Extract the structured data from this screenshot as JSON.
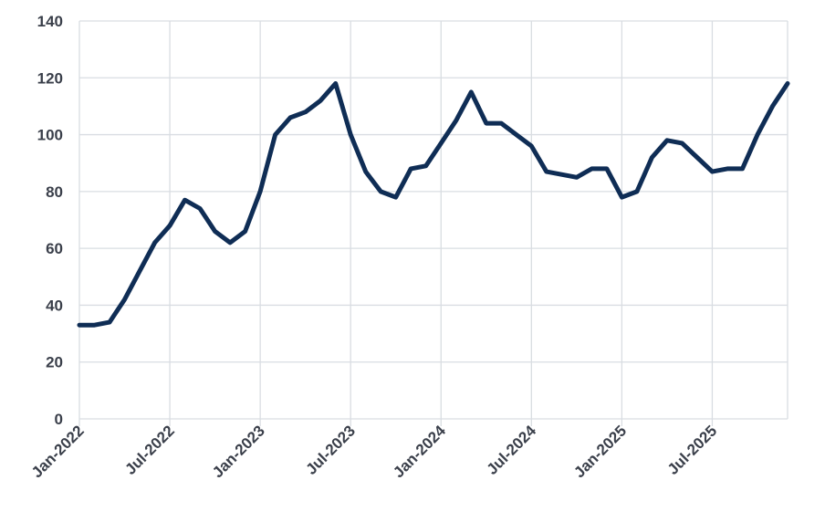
{
  "chart_data": {
    "type": "line",
    "x": [
      "2022-01",
      "2022-02",
      "2022-03",
      "2022-04",
      "2022-05",
      "2022-06",
      "2022-07",
      "2022-08",
      "2022-09",
      "2022-10",
      "2022-11",
      "2022-12",
      "2023-01",
      "2023-02",
      "2023-03",
      "2023-04",
      "2023-05",
      "2023-06",
      "2023-07",
      "2023-08",
      "2023-09",
      "2023-10",
      "2023-11",
      "2023-12",
      "2024-01",
      "2024-02",
      "2024-03",
      "2024-04",
      "2024-05",
      "2024-06",
      "2024-07",
      "2024-08",
      "2024-09",
      "2024-10",
      "2024-11",
      "2024-12",
      "2025-01",
      "2025-02",
      "2025-03",
      "2025-04",
      "2025-05",
      "2025-06",
      "2025-07",
      "2025-08",
      "2025-09",
      "2025-10",
      "2025-11",
      "2025-12"
    ],
    "series": [
      {
        "color": "#0f2d55",
        "values": [
          33,
          33,
          34,
          42,
          52,
          62,
          68,
          77,
          74,
          66,
          62,
          66,
          80,
          100,
          106,
          108,
          112,
          118,
          100,
          87,
          80,
          78,
          88,
          89,
          97,
          105,
          115,
          104,
          104,
          100,
          96,
          87,
          86,
          85,
          88,
          88,
          78,
          80,
          92,
          98,
          97,
          92,
          87,
          88,
          88,
          100,
          110,
          118
        ]
      }
    ],
    "xlim": [
      "2022-01",
      "2025-12"
    ],
    "xticks": [
      {
        "value": "2022-01",
        "label": "Jan-2022"
      },
      {
        "value": "2022-07",
        "label": "Jul-2022"
      },
      {
        "value": "2023-01",
        "label": "Jan-2023"
      },
      {
        "value": "2023-07",
        "label": "Jul-2023"
      },
      {
        "value": "2024-01",
        "label": "Jan-2024"
      },
      {
        "value": "2024-07",
        "label": "Jul-2024"
      },
      {
        "value": "2025-01",
        "label": "Jan-2025"
      },
      {
        "value": "2025-07",
        "label": "Jul-2025"
      }
    ],
    "ylim": [
      0,
      140
    ],
    "yticks": [
      0,
      20,
      40,
      60,
      80,
      100,
      120,
      140
    ],
    "grid": true
  }
}
